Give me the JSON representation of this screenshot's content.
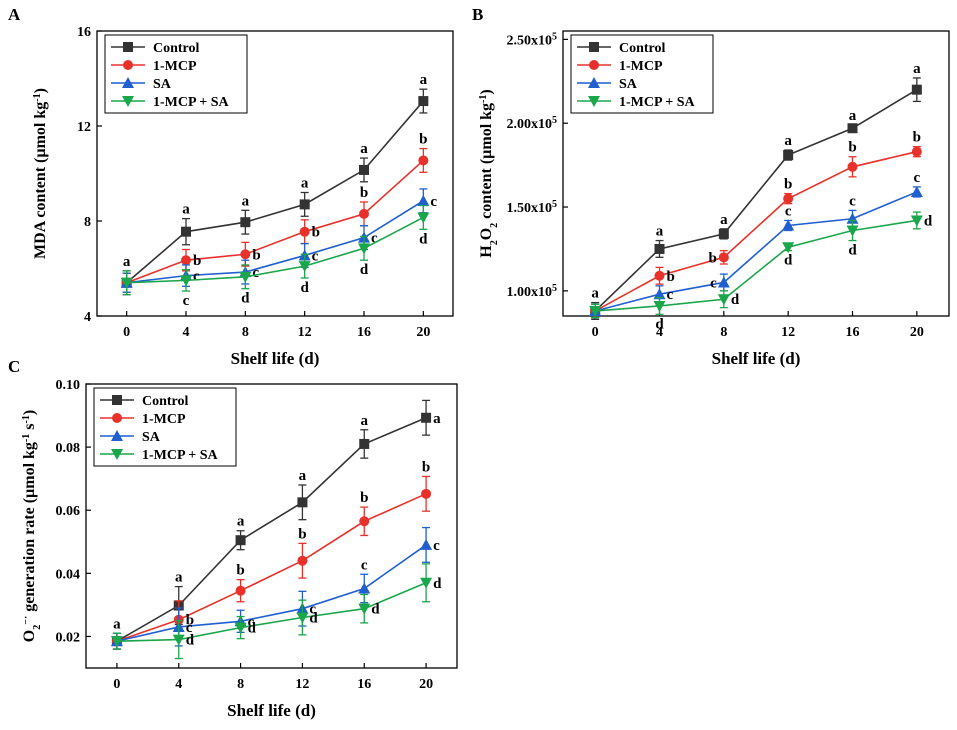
{
  "chart_data": [
    {
      "type": "line",
      "panel_letter": "A",
      "xlabel": "Shelf life (d)",
      "ylabel_html": "MDA content (µmol kg<tspan baseline-shift='super' font-size='10'>-1</tspan>)",
      "ylabel": "MDA content (µmol kg-1)",
      "x": [
        0,
        4,
        8,
        12,
        16,
        20
      ],
      "xlim": [
        -2,
        22
      ],
      "ylim": [
        4,
        16
      ],
      "yticks": [
        4,
        8,
        12,
        16
      ],
      "ytick_labels": [
        "4",
        "8",
        "12",
        "16"
      ],
      "xticks": [
        0,
        4,
        8,
        12,
        16,
        20
      ],
      "xtick_labels": [
        "0",
        "4",
        "8",
        "12",
        "16",
        "20"
      ],
      "legend_position": "top-left",
      "series": [
        {
          "name": "Control",
          "color": "#333333",
          "marker": "square",
          "values": [
            5.4,
            7.55,
            7.95,
            8.7,
            10.15,
            13.05
          ],
          "errors": [
            0.5,
            0.55,
            0.5,
            0.5,
            0.5,
            0.5
          ],
          "letters": [
            "a",
            "a",
            "a",
            "a",
            "a",
            "a"
          ],
          "letter_pos": [
            "above",
            "above",
            "above",
            "above",
            "above",
            "above"
          ]
        },
        {
          "name": "1-MCP",
          "color": "#e8312b",
          "marker": "circle",
          "values": [
            5.4,
            6.35,
            6.6,
            7.55,
            8.3,
            10.55
          ],
          "errors": [
            0.4,
            0.45,
            0.5,
            0.5,
            0.5,
            0.5
          ],
          "letters": [
            "",
            "b",
            "b",
            "b",
            "b",
            "b"
          ],
          "letter_pos": [
            "",
            "right",
            "right",
            "right",
            "above",
            "above"
          ]
        },
        {
          "name": "SA",
          "color": "#1f5fcf",
          "marker": "triangle-up",
          "values": [
            5.4,
            5.7,
            5.85,
            6.55,
            7.3,
            8.85
          ],
          "errors": [
            0.4,
            0.45,
            0.5,
            0.5,
            0.5,
            0.5
          ],
          "letters": [
            "",
            "c",
            "c",
            "c",
            "c",
            "c"
          ],
          "letter_pos": [
            "",
            "right",
            "right",
            "right",
            "right",
            "right"
          ]
        },
        {
          "name": "1-MCP + SA",
          "color": "#1aa64a",
          "marker": "triangle-down",
          "values": [
            5.4,
            5.5,
            5.65,
            6.1,
            6.85,
            8.15
          ],
          "errors": [
            0.5,
            0.45,
            0.5,
            0.5,
            0.5,
            0.5
          ],
          "letters": [
            "",
            "c",
            "d",
            "d",
            "d",
            "d"
          ],
          "letter_pos": [
            "",
            "below",
            "below",
            "below",
            "below",
            "below"
          ]
        }
      ]
    },
    {
      "type": "line",
      "panel_letter": "B",
      "xlabel": "Shelf life (d)",
      "ylabel": "H2O2 content (µmol kg-1)",
      "x": [
        0,
        4,
        8,
        12,
        16,
        20
      ],
      "xlim": [
        -2,
        22
      ],
      "ylim": [
        85000,
        255000
      ],
      "yticks": [
        100000,
        150000,
        200000,
        250000
      ],
      "ytick_labels": [
        "1.00x10",
        "1.50x10",
        "2.00x10",
        "2.50x10"
      ],
      "ytick_exponent": "5",
      "xticks": [
        0,
        4,
        8,
        12,
        16,
        20
      ],
      "xtick_labels": [
        "0",
        "4",
        "8",
        "12",
        "16",
        "20"
      ],
      "legend_position": "top-left",
      "series": [
        {
          "name": "Control",
          "color": "#333333",
          "marker": "square",
          "values": [
            88000,
            125000,
            134000,
            181000,
            197000,
            220000
          ],
          "errors": [
            5000,
            5000,
            3000,
            3000,
            2000,
            7000
          ],
          "letters": [
            "a",
            "a",
            "a",
            "a",
            "a",
            "a"
          ],
          "letter_pos": [
            "above",
            "above",
            "above",
            "above",
            "above",
            "above"
          ]
        },
        {
          "name": "1-MCP",
          "color": "#e8312b",
          "marker": "circle",
          "values": [
            88000,
            109000,
            120000,
            155000,
            174000,
            183000
          ],
          "errors": [
            4000,
            5000,
            4000,
            3000,
            6000,
            3000
          ],
          "letters": [
            "",
            "b",
            "b",
            "b",
            "b",
            "b"
          ],
          "letter_pos": [
            "",
            "right",
            "left",
            "above",
            "above",
            "above"
          ]
        },
        {
          "name": "SA",
          "color": "#1f5fcf",
          "marker": "triangle-up",
          "values": [
            88000,
            98000,
            105000,
            139000,
            143000,
            159000
          ],
          "errors": [
            4000,
            5000,
            5000,
            3000,
            5000,
            3000
          ],
          "letters": [
            "",
            "c",
            "c",
            "c",
            "c",
            "c"
          ],
          "letter_pos": [
            "",
            "right",
            "left",
            "above",
            "above",
            "above"
          ]
        },
        {
          "name": "1-MCP + SA",
          "color": "#1aa64a",
          "marker": "triangle-down",
          "values": [
            88000,
            91000,
            95000,
            126000,
            136000,
            142000
          ],
          "errors": [
            4000,
            5000,
            5000,
            2000,
            6000,
            5000
          ],
          "letters": [
            "",
            "d",
            "d",
            "d",
            "d",
            "d"
          ],
          "letter_pos": [
            "",
            "below",
            "right",
            "below",
            "below",
            "right"
          ]
        }
      ]
    },
    {
      "type": "line",
      "panel_letter": "C",
      "xlabel": "Shelf life (d)",
      "ylabel": "O2-· generation rate (µmol kg-1 s-1)",
      "x": [
        0,
        4,
        8,
        12,
        16,
        20
      ],
      "xlim": [
        -2,
        22
      ],
      "ylim": [
        0.01,
        0.1
      ],
      "yticks": [
        0.02,
        0.04,
        0.06,
        0.08,
        0.1
      ],
      "ytick_labels": [
        "0.02",
        "0.04",
        "0.06",
        "0.08",
        "0.10"
      ],
      "xticks": [
        0,
        4,
        8,
        12,
        16,
        20
      ],
      "xtick_labels": [
        "0",
        "4",
        "8",
        "12",
        "16",
        "20"
      ],
      "legend_position": "top-left",
      "series": [
        {
          "name": "Control",
          "color": "#333333",
          "marker": "square",
          "values": [
            0.0185,
            0.0298,
            0.0505,
            0.0625,
            0.081,
            0.0893
          ],
          "errors": [
            0.0025,
            0.006,
            0.003,
            0.0055,
            0.0045,
            0.0055
          ],
          "letters": [
            "a",
            "a",
            "a",
            "a",
            "a",
            "a"
          ],
          "letter_pos": [
            "above",
            "above",
            "above",
            "above",
            "above",
            "right"
          ]
        },
        {
          "name": "1-MCP",
          "color": "#e8312b",
          "marker": "circle",
          "values": [
            0.0185,
            0.0253,
            0.0345,
            0.044,
            0.0565,
            0.0652
          ],
          "errors": [
            0.0025,
            0.006,
            0.0035,
            0.0055,
            0.0045,
            0.0055
          ],
          "letters": [
            "",
            "b",
            "b",
            "b",
            "b",
            "b"
          ],
          "letter_pos": [
            "",
            "right",
            "above",
            "above",
            "above",
            "above"
          ]
        },
        {
          "name": "SA",
          "color": "#1f5fcf",
          "marker": "triangle-up",
          "values": [
            0.0185,
            0.023,
            0.0248,
            0.0288,
            0.0352,
            0.049
          ],
          "errors": [
            0.0025,
            0.006,
            0.0035,
            0.0055,
            0.0045,
            0.0055
          ],
          "letters": [
            "",
            "c",
            "c",
            "c",
            "c",
            "c"
          ],
          "letter_pos": [
            "",
            "right",
            "right",
            "right",
            "above",
            "right"
          ]
        },
        {
          "name": "1-MCP + SA",
          "color": "#1aa64a",
          "marker": "triangle-down",
          "values": [
            0.0185,
            0.019,
            0.0228,
            0.026,
            0.0288,
            0.037
          ],
          "errors": [
            0.0025,
            0.006,
            0.0035,
            0.0055,
            0.0045,
            0.006
          ],
          "letters": [
            "",
            "d",
            "d",
            "d",
            "d",
            "d"
          ],
          "letter_pos": [
            "",
            "right",
            "right",
            "right",
            "right",
            "right"
          ]
        }
      ]
    }
  ],
  "xlabel_panel_c": "Shelf life (d)"
}
